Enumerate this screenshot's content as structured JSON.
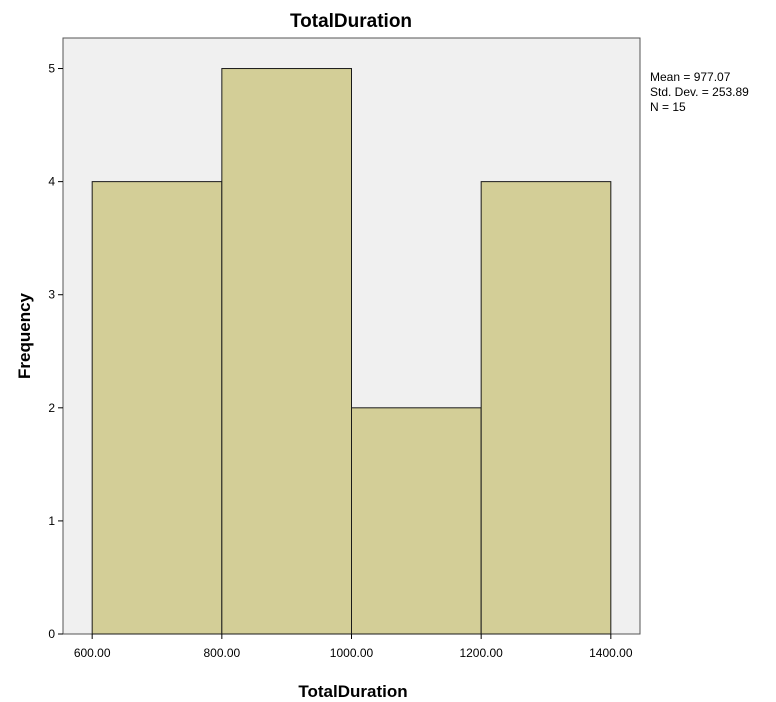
{
  "chart_data": {
    "type": "bar",
    "title": "TotalDuration",
    "xlabel": "TotalDuration",
    "ylabel": "Frequency",
    "bins": [
      {
        "from": 600,
        "to": 800,
        "count": 4
      },
      {
        "from": 800,
        "to": 1000,
        "count": 5
      },
      {
        "from": 1000,
        "to": 1200,
        "count": 2
      },
      {
        "from": 1200,
        "to": 1400,
        "count": 4
      }
    ],
    "xticks": [
      "600.00",
      "800.00",
      "1000.00",
      "1200.00",
      "1400.00"
    ],
    "xtick_values": [
      600,
      800,
      1000,
      1200,
      1400
    ],
    "yticks": [
      "0",
      "1",
      "2",
      "3",
      "4",
      "5"
    ],
    "ytick_values": [
      0,
      1,
      2,
      3,
      4,
      5
    ],
    "xlim": [
      555,
      1445
    ],
    "ylim": [
      0,
      5.27
    ],
    "grid": false,
    "stats": [
      "Mean = 977.07",
      "Std. Dev. = 253.89",
      "N = 15"
    ]
  },
  "colors": {
    "bar_fill": "#d3ce97",
    "bar_stroke": "#1a1a1a",
    "plot_background": "#f0f0f0",
    "page_background": "#ffffff"
  }
}
